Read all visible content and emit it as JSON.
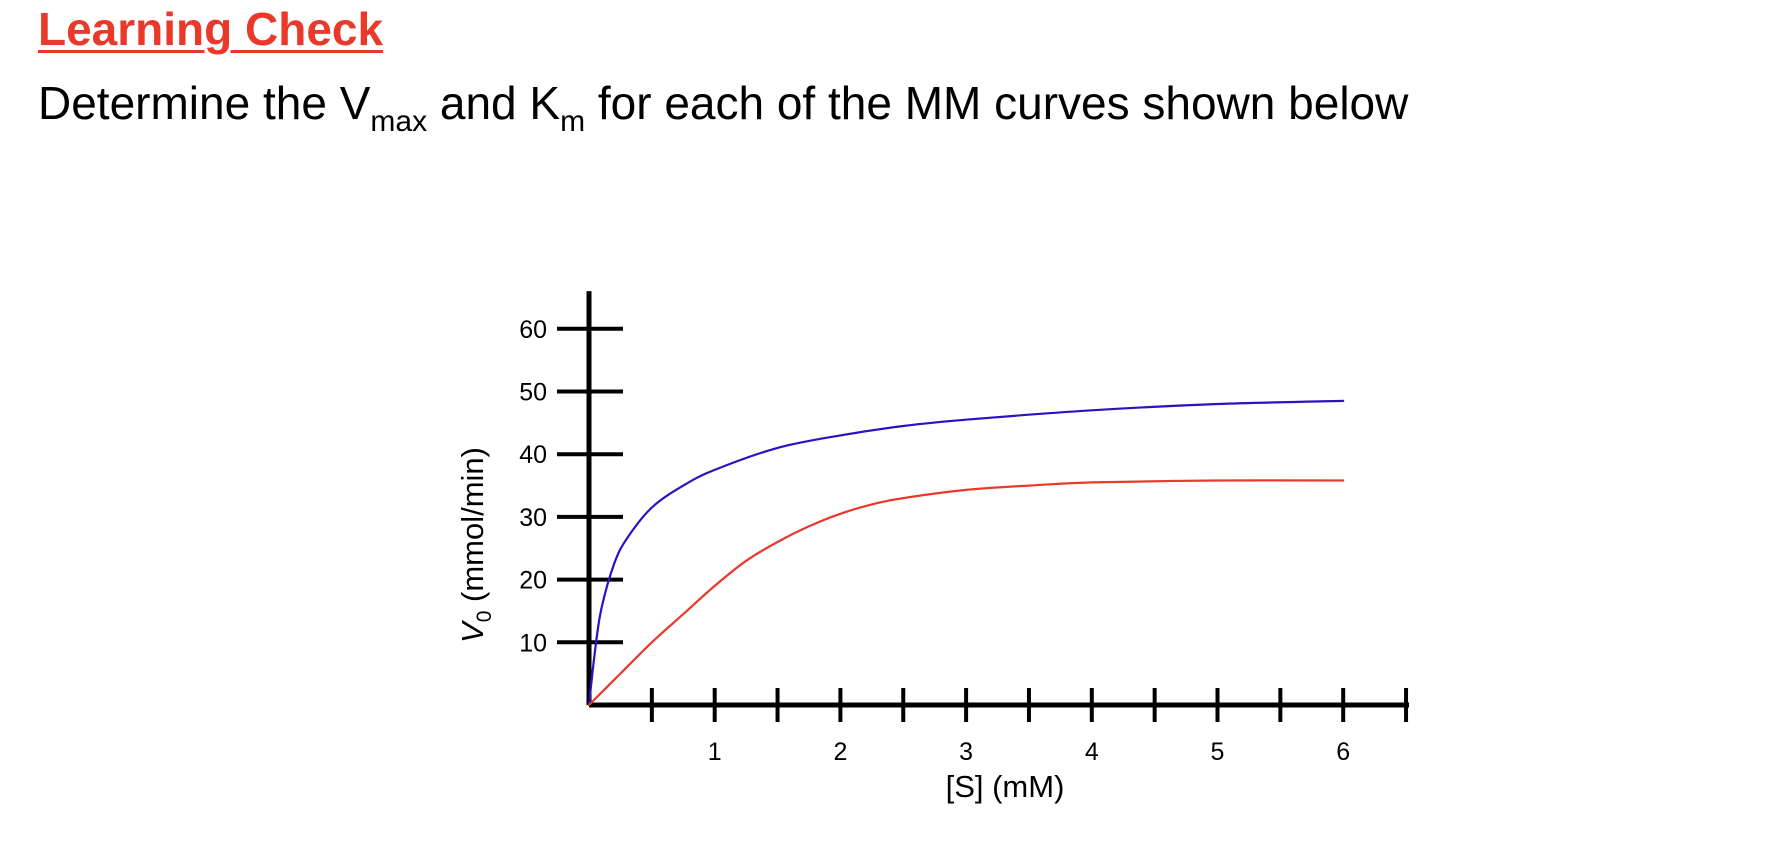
{
  "slide": {
    "title": "Learning Check",
    "question": {
      "part1": "Determine the V",
      "sub1": "max",
      "part2": " and K",
      "sub2": "m",
      "part3": " for each of the MM curves shown below"
    }
  },
  "chart_data": {
    "type": "line",
    "title": "",
    "xlabel": "[S] (mM)",
    "ylabel_main": "V",
    "ylabel_sub": "0",
    "ylabel_rest": " (mmol/min)",
    "xlim": [
      0,
      6.5
    ],
    "ylim": [
      0,
      66
    ],
    "x_tick_positions": [
      0.5,
      1,
      1.5,
      2,
      2.5,
      3,
      3.5,
      4,
      4.5,
      5,
      5.5,
      6,
      6.5
    ],
    "x_tick_labels": [
      {
        "value": 1,
        "label": "1"
      },
      {
        "value": 2,
        "label": "2"
      },
      {
        "value": 3,
        "label": "3"
      },
      {
        "value": 4,
        "label": "4"
      },
      {
        "value": 5,
        "label": "5"
      },
      {
        "value": 6,
        "label": "6"
      }
    ],
    "y_ticks": [
      {
        "value": 10,
        "label": "10"
      },
      {
        "value": 20,
        "label": "20"
      },
      {
        "value": 30,
        "label": "30"
      },
      {
        "value": 40,
        "label": "40"
      },
      {
        "value": 50,
        "label": "50"
      },
      {
        "value": 60,
        "label": "60"
      }
    ],
    "grid": false,
    "series": [
      {
        "color": "#2a12c4",
        "points": [
          [
            0,
            0
          ],
          [
            0.05,
            9
          ],
          [
            0.1,
            15.5
          ],
          [
            0.2,
            22.5
          ],
          [
            0.3,
            26.5
          ],
          [
            0.5,
            31.5
          ],
          [
            0.75,
            35
          ],
          [
            1,
            37.5
          ],
          [
            1.5,
            41
          ],
          [
            2,
            43
          ],
          [
            2.5,
            44.5
          ],
          [
            3,
            45.5
          ],
          [
            4,
            47
          ],
          [
            5,
            48
          ],
          [
            6,
            48.5
          ]
        ]
      },
      {
        "color": "#e8392b",
        "points": [
          [
            0,
            0
          ],
          [
            0.25,
            5
          ],
          [
            0.5,
            10
          ],
          [
            0.75,
            14.5
          ],
          [
            1,
            19
          ],
          [
            1.25,
            23
          ],
          [
            1.5,
            26
          ],
          [
            1.75,
            28.5
          ],
          [
            2,
            30.5
          ],
          [
            2.25,
            32
          ],
          [
            2.5,
            33
          ],
          [
            3,
            34.3
          ],
          [
            3.5,
            35
          ],
          [
            4,
            35.5
          ],
          [
            5,
            35.8
          ],
          [
            6,
            35.8
          ]
        ]
      }
    ]
  }
}
